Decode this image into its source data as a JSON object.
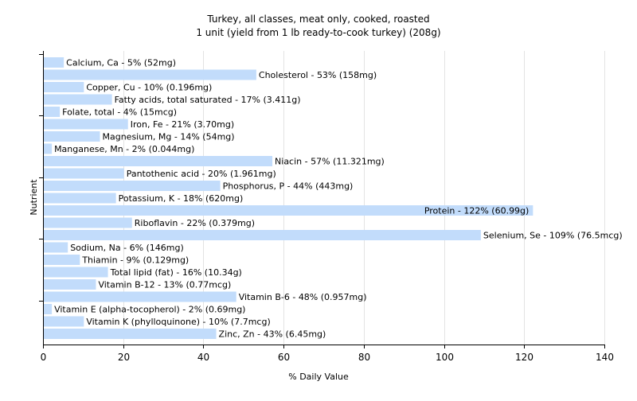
{
  "chart_data": {
    "type": "bar",
    "orientation": "horizontal",
    "title": "Turkey, all classes, meat only, cooked, roasted",
    "subtitle": "1 unit (yield from 1 lb ready-to-cook turkey) (208g)",
    "xlabel": "% Daily Value",
    "ylabel": "Nutrient",
    "xlim": [
      0,
      140
    ],
    "x_ticks": [
      "0",
      "20",
      "40",
      "60",
      "80",
      "100",
      "120",
      "140"
    ],
    "grid": true,
    "legend": "none",
    "bar_color": "#c2dcfb",
    "categories": [
      "Calcium, Ca",
      "Cholesterol",
      "Copper, Cu",
      "Fatty acids, total saturated",
      "Folate, total",
      "Iron, Fe",
      "Magnesium, Mg",
      "Manganese, Mn",
      "Niacin",
      "Pantothenic acid",
      "Phosphorus, P",
      "Potassium, K",
      "Protein",
      "Riboflavin",
      "Selenium, Se",
      "Sodium, Na",
      "Thiamin",
      "Total lipid (fat)",
      "Vitamin B-12",
      "Vitamin B-6",
      "Vitamin E (alpha-tocopherol)",
      "Vitamin K (phylloquinone)",
      "Zinc, Zn"
    ],
    "values": [
      5,
      53,
      10,
      17,
      4,
      21,
      14,
      2,
      57,
      20,
      44,
      18,
      122,
      22,
      109,
      6,
      9,
      16,
      13,
      48,
      2,
      10,
      43
    ],
    "labels": [
      "Calcium, Ca - 5% (52mg)",
      "Cholesterol - 53% (158mg)",
      "Copper, Cu - 10% (0.196mg)",
      "Fatty acids, total saturated - 17% (3.411g)",
      "Folate, total - 4% (15mcg)",
      "Iron, Fe - 21% (3.70mg)",
      "Magnesium, Mg - 14% (54mg)",
      "Manganese, Mn - 2% (0.044mg)",
      "Niacin - 57% (11.321mg)",
      "Pantothenic acid - 20% (1.961mg)",
      "Phosphorus, P - 44% (443mg)",
      "Potassium, K - 18% (620mg)",
      "Protein - 122% (60.99g)",
      "Riboflavin - 22% (0.379mg)",
      "Selenium, Se - 109% (76.5mcg)",
      "Sodium, Na - 6% (146mg)",
      "Thiamin - 9% (0.129mg)",
      "Total lipid (fat) - 16% (10.34g)",
      "Vitamin B-12 - 13% (0.77mcg)",
      "Vitamin B-6 - 48% (0.957mg)",
      "Vitamin E (alpha-tocopherol) - 2% (0.69mg)",
      "Vitamin K (phylloquinone) - 10% (7.7mcg)",
      "Zinc, Zn - 43% (6.45mg)"
    ]
  }
}
